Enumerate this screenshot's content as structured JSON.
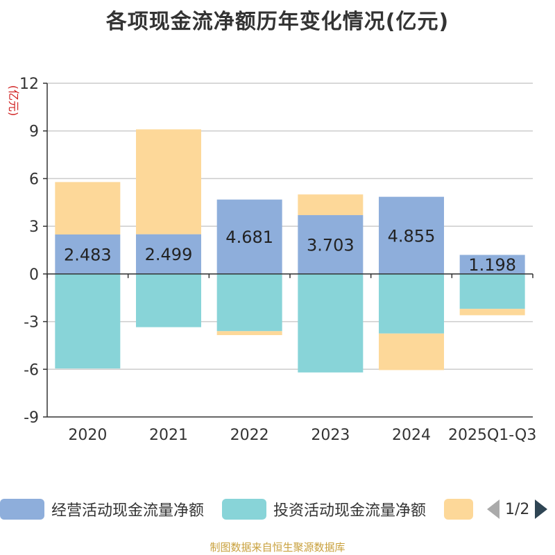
{
  "title": "各项现金流净额历年变化情况(亿元)",
  "source": "制图数据来自恒生聚源数据库",
  "legend": {
    "items": [
      {
        "label": "经营活动现金流量净额",
        "color": "#8eaedb"
      },
      {
        "label": "投资活动现金流量净额",
        "color": "#88d4d8"
      },
      {
        "label": "",
        "color": "#fdd899"
      }
    ],
    "page": "1/2"
  },
  "chart_data": {
    "type": "bar",
    "stacked": true,
    "title": "各项现金流净额历年变化情况(亿元)",
    "ylabel": "(亿元)",
    "ylim": [
      -9,
      12
    ],
    "yticks": [
      12,
      9,
      6,
      3,
      0,
      -3,
      -6,
      -9
    ],
    "categories": [
      "2020",
      "2021",
      "2022",
      "2023",
      "2024",
      "2025Q1-Q3"
    ],
    "series": [
      {
        "name": "经营活动现金流量净额",
        "color": "#8eaedb",
        "values": [
          2.483,
          2.499,
          4.681,
          3.703,
          4.855,
          1.198
        ],
        "labels": [
          "2.483",
          "2.499",
          "4.681",
          "3.703",
          "4.855",
          "1.198"
        ]
      },
      {
        "name": "投资活动现金流量净额",
        "color": "#88d4d8",
        "values": [
          -5.95,
          -3.35,
          -3.6,
          -6.2,
          -3.75,
          -2.2
        ]
      },
      {
        "name": "",
        "color": "#fdd899",
        "values": [
          3.3,
          6.6,
          -0.25,
          1.3,
          -2.3,
          -0.4
        ]
      }
    ]
  }
}
